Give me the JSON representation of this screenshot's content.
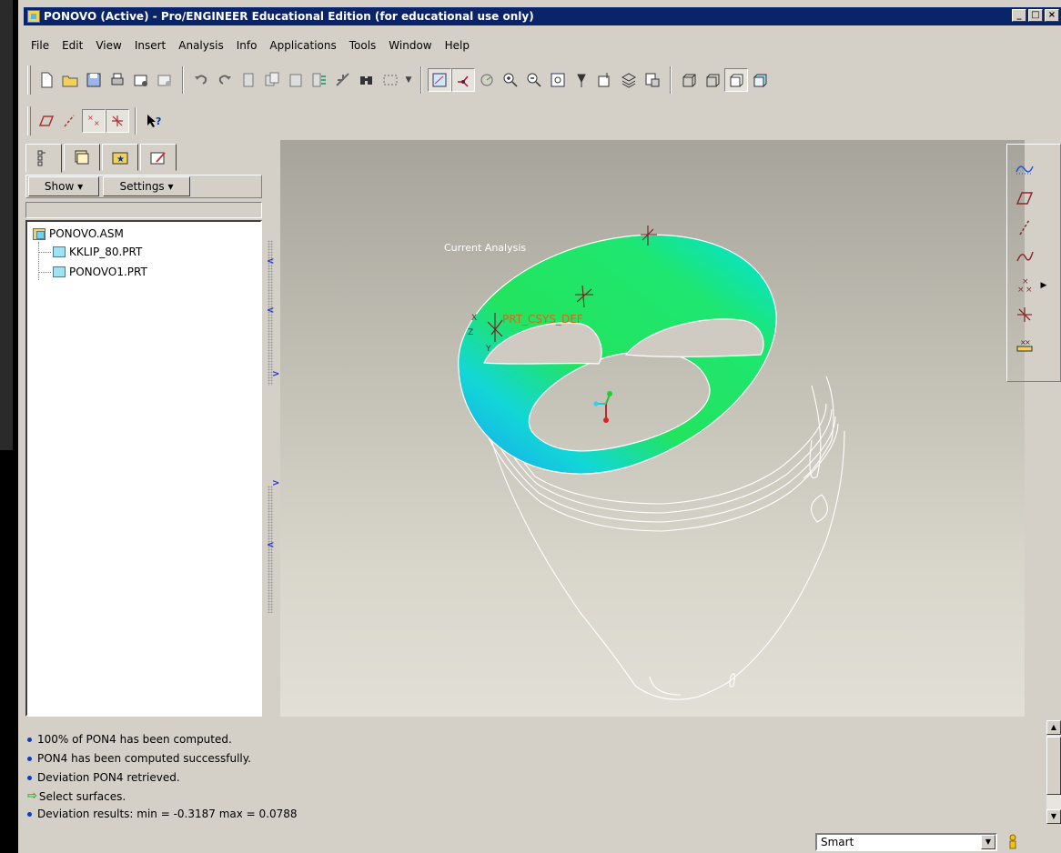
{
  "window": {
    "title": "PONOVO (Active) - Pro/ENGINEER Educational Edition (for educational use only)",
    "buttons": [
      "_",
      "□",
      "×"
    ]
  },
  "menubar": {
    "items": [
      "File",
      "Edit",
      "View",
      "Insert",
      "Analysis",
      "Info",
      "Applications",
      "Tools",
      "Window",
      "Help"
    ]
  },
  "navigator": {
    "show_label": "Show ▾",
    "settings_label": "Settings ▾",
    "tree": {
      "root": "PONOVO.ASM",
      "children": [
        "KKLIP_80.PRT",
        "PONOVO1.PRT"
      ]
    }
  },
  "graphics": {
    "analysis_label": "Current Analysis",
    "csys_label": "PRT_CSYS_DEF",
    "colors": {
      "surface_primary": "#20e25a",
      "surface_cyan": "#00e4ea",
      "surface_blue": "#1aa0f0",
      "background_top": "#a7a49b",
      "background_bottom": "#e2dfd6"
    }
  },
  "messages": [
    {
      "icon": "bullet",
      "text": "100% of PON4 has been computed."
    },
    {
      "icon": "bullet",
      "text": "PON4 has been computed successfully."
    },
    {
      "icon": "bullet",
      "text": "Deviation PON4 retrieved."
    },
    {
      "icon": "prompt-arrow",
      "text": "Select surfaces."
    },
    {
      "icon": "bullet",
      "text": "Deviation results:  min = -0.3187  max = 0.0788"
    }
  ],
  "status": {
    "filter_value": "Smart"
  }
}
